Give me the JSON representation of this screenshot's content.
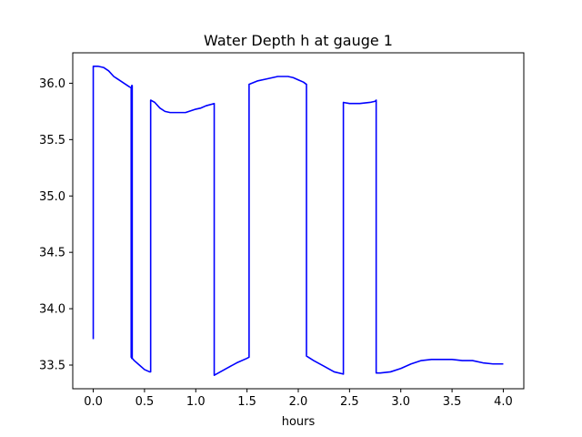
{
  "chart_data": {
    "type": "line",
    "title": "Water Depth h at gauge 1",
    "xlabel": "hours",
    "ylabel": "",
    "xlim": [
      -0.2,
      4.2
    ],
    "ylim": [
      33.29,
      36.27
    ],
    "xticks": [
      0.0,
      0.5,
      1.0,
      1.5,
      2.0,
      2.5,
      3.0,
      3.5,
      4.0
    ],
    "xtick_labels": [
      "0.0",
      "0.5",
      "1.0",
      "1.5",
      "2.0",
      "2.5",
      "3.0",
      "3.5",
      "4.0"
    ],
    "yticks": [
      33.5,
      34.0,
      34.5,
      35.0,
      35.5,
      36.0
    ],
    "ytick_labels": [
      "33.5",
      "34.0",
      "34.5",
      "35.0",
      "35.5",
      "36.0"
    ],
    "grid": false,
    "series": [
      {
        "color": "#0000ff",
        "x": [
          0.0,
          0.0,
          0.05,
          0.1,
          0.15,
          0.2,
          0.25,
          0.3,
          0.35,
          0.37,
          0.37,
          0.375,
          0.375,
          0.38,
          0.38,
          0.4,
          0.45,
          0.5,
          0.55,
          0.56,
          0.56,
          0.6,
          0.65,
          0.7,
          0.75,
          0.8,
          0.9,
          1.0,
          1.05,
          1.1,
          1.18,
          1.18,
          1.2,
          1.3,
          1.4,
          1.5,
          1.52,
          1.52,
          1.6,
          1.7,
          1.75,
          1.8,
          1.9,
          1.95,
          2.0,
          2.05,
          2.08,
          2.08,
          2.15,
          2.25,
          2.35,
          2.44,
          2.44,
          2.5,
          2.6,
          2.7,
          2.75,
          2.76,
          2.76,
          2.8,
          2.9,
          3.0,
          3.1,
          3.2,
          3.3,
          3.4,
          3.5,
          3.6,
          3.7,
          3.8,
          3.9,
          4.0
        ],
        "y": [
          33.73,
          36.15,
          36.15,
          36.14,
          36.11,
          36.06,
          36.03,
          36.0,
          35.97,
          35.96,
          33.57,
          35.98,
          33.56,
          35.98,
          33.56,
          33.54,
          33.5,
          33.46,
          33.44,
          33.44,
          35.85,
          35.83,
          35.78,
          35.75,
          35.74,
          35.74,
          35.74,
          35.77,
          35.78,
          35.8,
          35.82,
          33.41,
          33.42,
          33.47,
          33.52,
          33.56,
          33.57,
          35.99,
          36.02,
          36.04,
          36.05,
          36.06,
          36.06,
          36.05,
          36.03,
          36.01,
          35.99,
          33.58,
          33.54,
          33.49,
          33.44,
          33.42,
          35.83,
          35.82,
          35.82,
          35.83,
          35.84,
          35.85,
          33.43,
          33.43,
          33.44,
          33.47,
          33.51,
          33.54,
          33.55,
          33.55,
          33.55,
          33.54,
          33.54,
          33.52,
          33.51,
          33.51
        ]
      }
    ]
  }
}
